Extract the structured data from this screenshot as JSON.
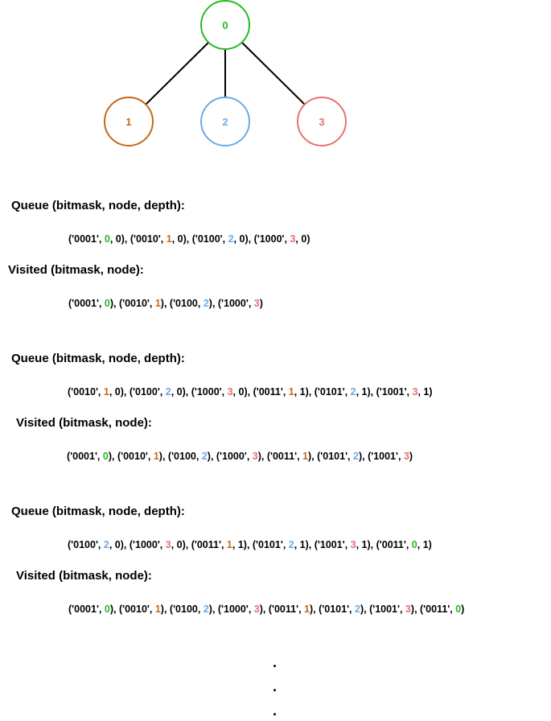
{
  "graph": {
    "nodes": [
      {
        "label": "0",
        "color": "#22BB22"
      },
      {
        "label": "1",
        "color": "#C2691A"
      },
      {
        "label": "2",
        "color": "#6AABE8"
      },
      {
        "label": "3",
        "color": "#E8706F"
      }
    ],
    "edges": [
      [
        "0",
        "1"
      ],
      [
        "0",
        "2"
      ],
      [
        "0",
        "3"
      ]
    ]
  },
  "steps": [
    {
      "queue_heading": "Queue (bitmask, node, depth):",
      "queue": [
        {
          "mask": "0001",
          "node": "0",
          "depth": "0"
        },
        {
          "mask": "0010",
          "node": "1",
          "depth": "0"
        },
        {
          "mask": "0100",
          "node": "2",
          "depth": "0"
        },
        {
          "mask": "1000",
          "node": "3",
          "depth": "0"
        }
      ],
      "visited_heading": "Visited (bitmask, node):",
      "visited": [
        {
          "mask": "0001",
          "node": "0"
        },
        {
          "mask": "0010",
          "node": "1"
        },
        {
          "mask": "0100",
          "node": "2"
        },
        {
          "mask": "1000",
          "node": "3"
        }
      ]
    },
    {
      "queue_heading": "Queue (bitmask, node, depth):",
      "queue": [
        {
          "mask": "0010",
          "node": "1",
          "depth": "0"
        },
        {
          "mask": "0100",
          "node": "2",
          "depth": "0"
        },
        {
          "mask": "1000",
          "node": "3",
          "depth": "0"
        },
        {
          "mask": "0011",
          "node": "1",
          "depth": "1"
        },
        {
          "mask": "0101",
          "node": "2",
          "depth": "1"
        },
        {
          "mask": "1001",
          "node": "3",
          "depth": "1"
        }
      ],
      "visited_heading": "Visited (bitmask, node):",
      "visited": [
        {
          "mask": "0001",
          "node": "0"
        },
        {
          "mask": "0010",
          "node": "1"
        },
        {
          "mask": "0100",
          "node": "2"
        },
        {
          "mask": "1000",
          "node": "3"
        },
        {
          "mask": "0011",
          "node": "1"
        },
        {
          "mask": "0101",
          "node": "2"
        },
        {
          "mask": "1001",
          "node": "3"
        }
      ]
    },
    {
      "queue_heading": "Queue (bitmask, node, depth):",
      "queue": [
        {
          "mask": "0100",
          "node": "2",
          "depth": "0"
        },
        {
          "mask": "1000",
          "node": "3",
          "depth": "0"
        },
        {
          "mask": "0011",
          "node": "1",
          "depth": "1"
        },
        {
          "mask": "0101",
          "node": "2",
          "depth": "1"
        },
        {
          "mask": "1001",
          "node": "3",
          "depth": "1"
        },
        {
          "mask": "0011",
          "node": "0",
          "depth": "1"
        }
      ],
      "visited_heading": "Visited (bitmask, node):",
      "visited": [
        {
          "mask": "0001",
          "node": "0"
        },
        {
          "mask": "0010",
          "node": "1"
        },
        {
          "mask": "0100",
          "node": "2"
        },
        {
          "mask": "1000",
          "node": "3"
        },
        {
          "mask": "0011",
          "node": "1"
        },
        {
          "mask": "0101",
          "node": "2"
        },
        {
          "mask": "1001",
          "node": "3"
        },
        {
          "mask": "0011",
          "node": "0"
        }
      ]
    }
  ],
  "ellipsis": [
    ".",
    ".",
    "."
  ]
}
